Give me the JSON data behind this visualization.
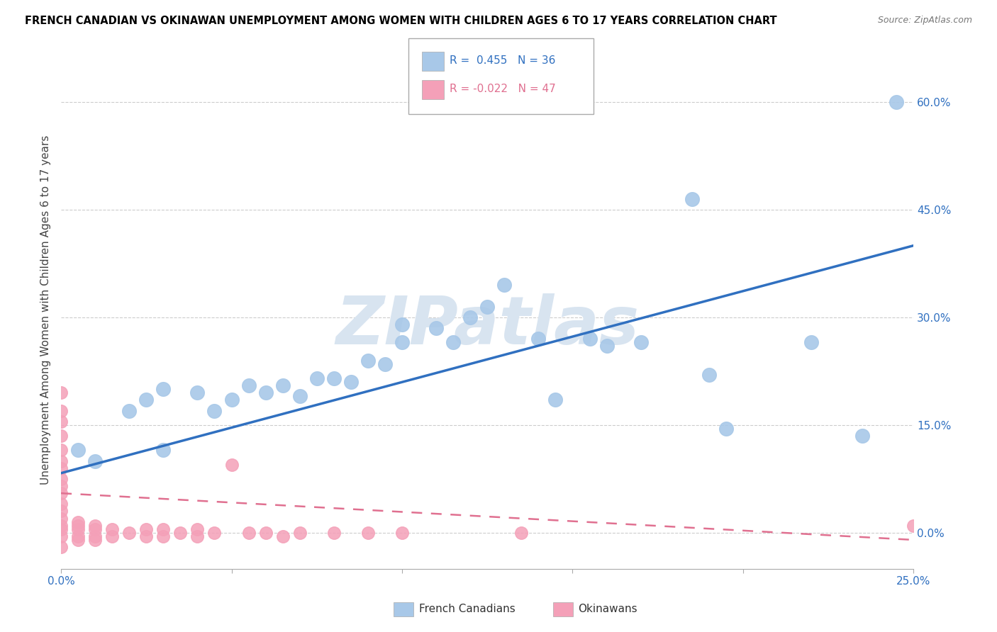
{
  "title": "FRENCH CANADIAN VS OKINAWAN UNEMPLOYMENT AMONG WOMEN WITH CHILDREN AGES 6 TO 17 YEARS CORRELATION CHART",
  "source": "Source: ZipAtlas.com",
  "ylabel": "Unemployment Among Women with Children Ages 6 to 17 years",
  "xlim": [
    0.0,
    0.25
  ],
  "ylim": [
    -0.05,
    0.67
  ],
  "xticks": [
    0.0,
    0.05,
    0.1,
    0.15,
    0.2,
    0.25
  ],
  "xtick_labels": [
    "0.0%",
    "",
    "",
    "",
    "",
    "25.0%"
  ],
  "yticks": [
    0.0,
    0.15,
    0.3,
    0.45,
    0.6
  ],
  "ytick_labels": [
    "0.0%",
    "15.0%",
    "30.0%",
    "45.0%",
    "60.0%"
  ],
  "blue_r": 0.455,
  "blue_n": 36,
  "pink_r": -0.022,
  "pink_n": 47,
  "blue_color": "#A8C8E8",
  "pink_color": "#F4A0B8",
  "line_blue_color": "#3070C0",
  "line_pink_color": "#E07090",
  "watermark": "ZIPatlas",
  "watermark_color": "#D8E4F0",
  "blue_x": [
    0.005,
    0.01,
    0.02,
    0.025,
    0.03,
    0.03,
    0.04,
    0.045,
    0.05,
    0.055,
    0.06,
    0.065,
    0.07,
    0.075,
    0.08,
    0.085,
    0.09,
    0.095,
    0.1,
    0.1,
    0.11,
    0.115,
    0.12,
    0.125,
    0.13,
    0.14,
    0.145,
    0.155,
    0.16,
    0.17,
    0.185,
    0.19,
    0.195,
    0.22,
    0.235,
    0.245
  ],
  "blue_y": [
    0.115,
    0.1,
    0.17,
    0.185,
    0.115,
    0.2,
    0.195,
    0.17,
    0.185,
    0.205,
    0.195,
    0.205,
    0.19,
    0.215,
    0.215,
    0.21,
    0.24,
    0.235,
    0.265,
    0.29,
    0.285,
    0.265,
    0.3,
    0.315,
    0.345,
    0.27,
    0.185,
    0.27,
    0.26,
    0.265,
    0.465,
    0.22,
    0.145,
    0.265,
    0.135,
    0.6
  ],
  "pink_x": [
    0.0,
    0.0,
    0.0,
    0.0,
    0.0,
    0.0,
    0.0,
    0.0,
    0.0,
    0.0,
    0.0,
    0.0,
    0.0,
    0.0,
    0.0,
    0.0,
    0.0,
    0.005,
    0.005,
    0.005,
    0.005,
    0.005,
    0.01,
    0.01,
    0.01,
    0.01,
    0.015,
    0.015,
    0.02,
    0.025,
    0.025,
    0.03,
    0.03,
    0.035,
    0.04,
    0.04,
    0.045,
    0.05,
    0.055,
    0.06,
    0.065,
    0.07,
    0.08,
    0.09,
    0.1,
    0.135,
    0.25
  ],
  "pink_y": [
    0.195,
    0.17,
    0.155,
    0.135,
    0.115,
    0.1,
    0.09,
    0.075,
    0.065,
    0.055,
    0.04,
    0.03,
    0.02,
    0.01,
    0.005,
    -0.005,
    -0.02,
    0.015,
    0.01,
    0.005,
    -0.005,
    -0.01,
    0.01,
    0.005,
    -0.005,
    -0.01,
    0.005,
    -0.005,
    0.0,
    0.005,
    -0.005,
    0.005,
    -0.005,
    0.0,
    0.005,
    -0.005,
    0.0,
    0.095,
    0.0,
    0.0,
    -0.005,
    0.0,
    0.0,
    0.0,
    0.0,
    0.0,
    0.01
  ],
  "blue_line_x0": 0.0,
  "blue_line_x1": 0.25,
  "blue_line_y0": 0.083,
  "blue_line_y1": 0.4,
  "pink_line_x0": 0.0,
  "pink_line_x1": 0.25,
  "pink_line_y0": 0.055,
  "pink_line_y1": -0.01
}
